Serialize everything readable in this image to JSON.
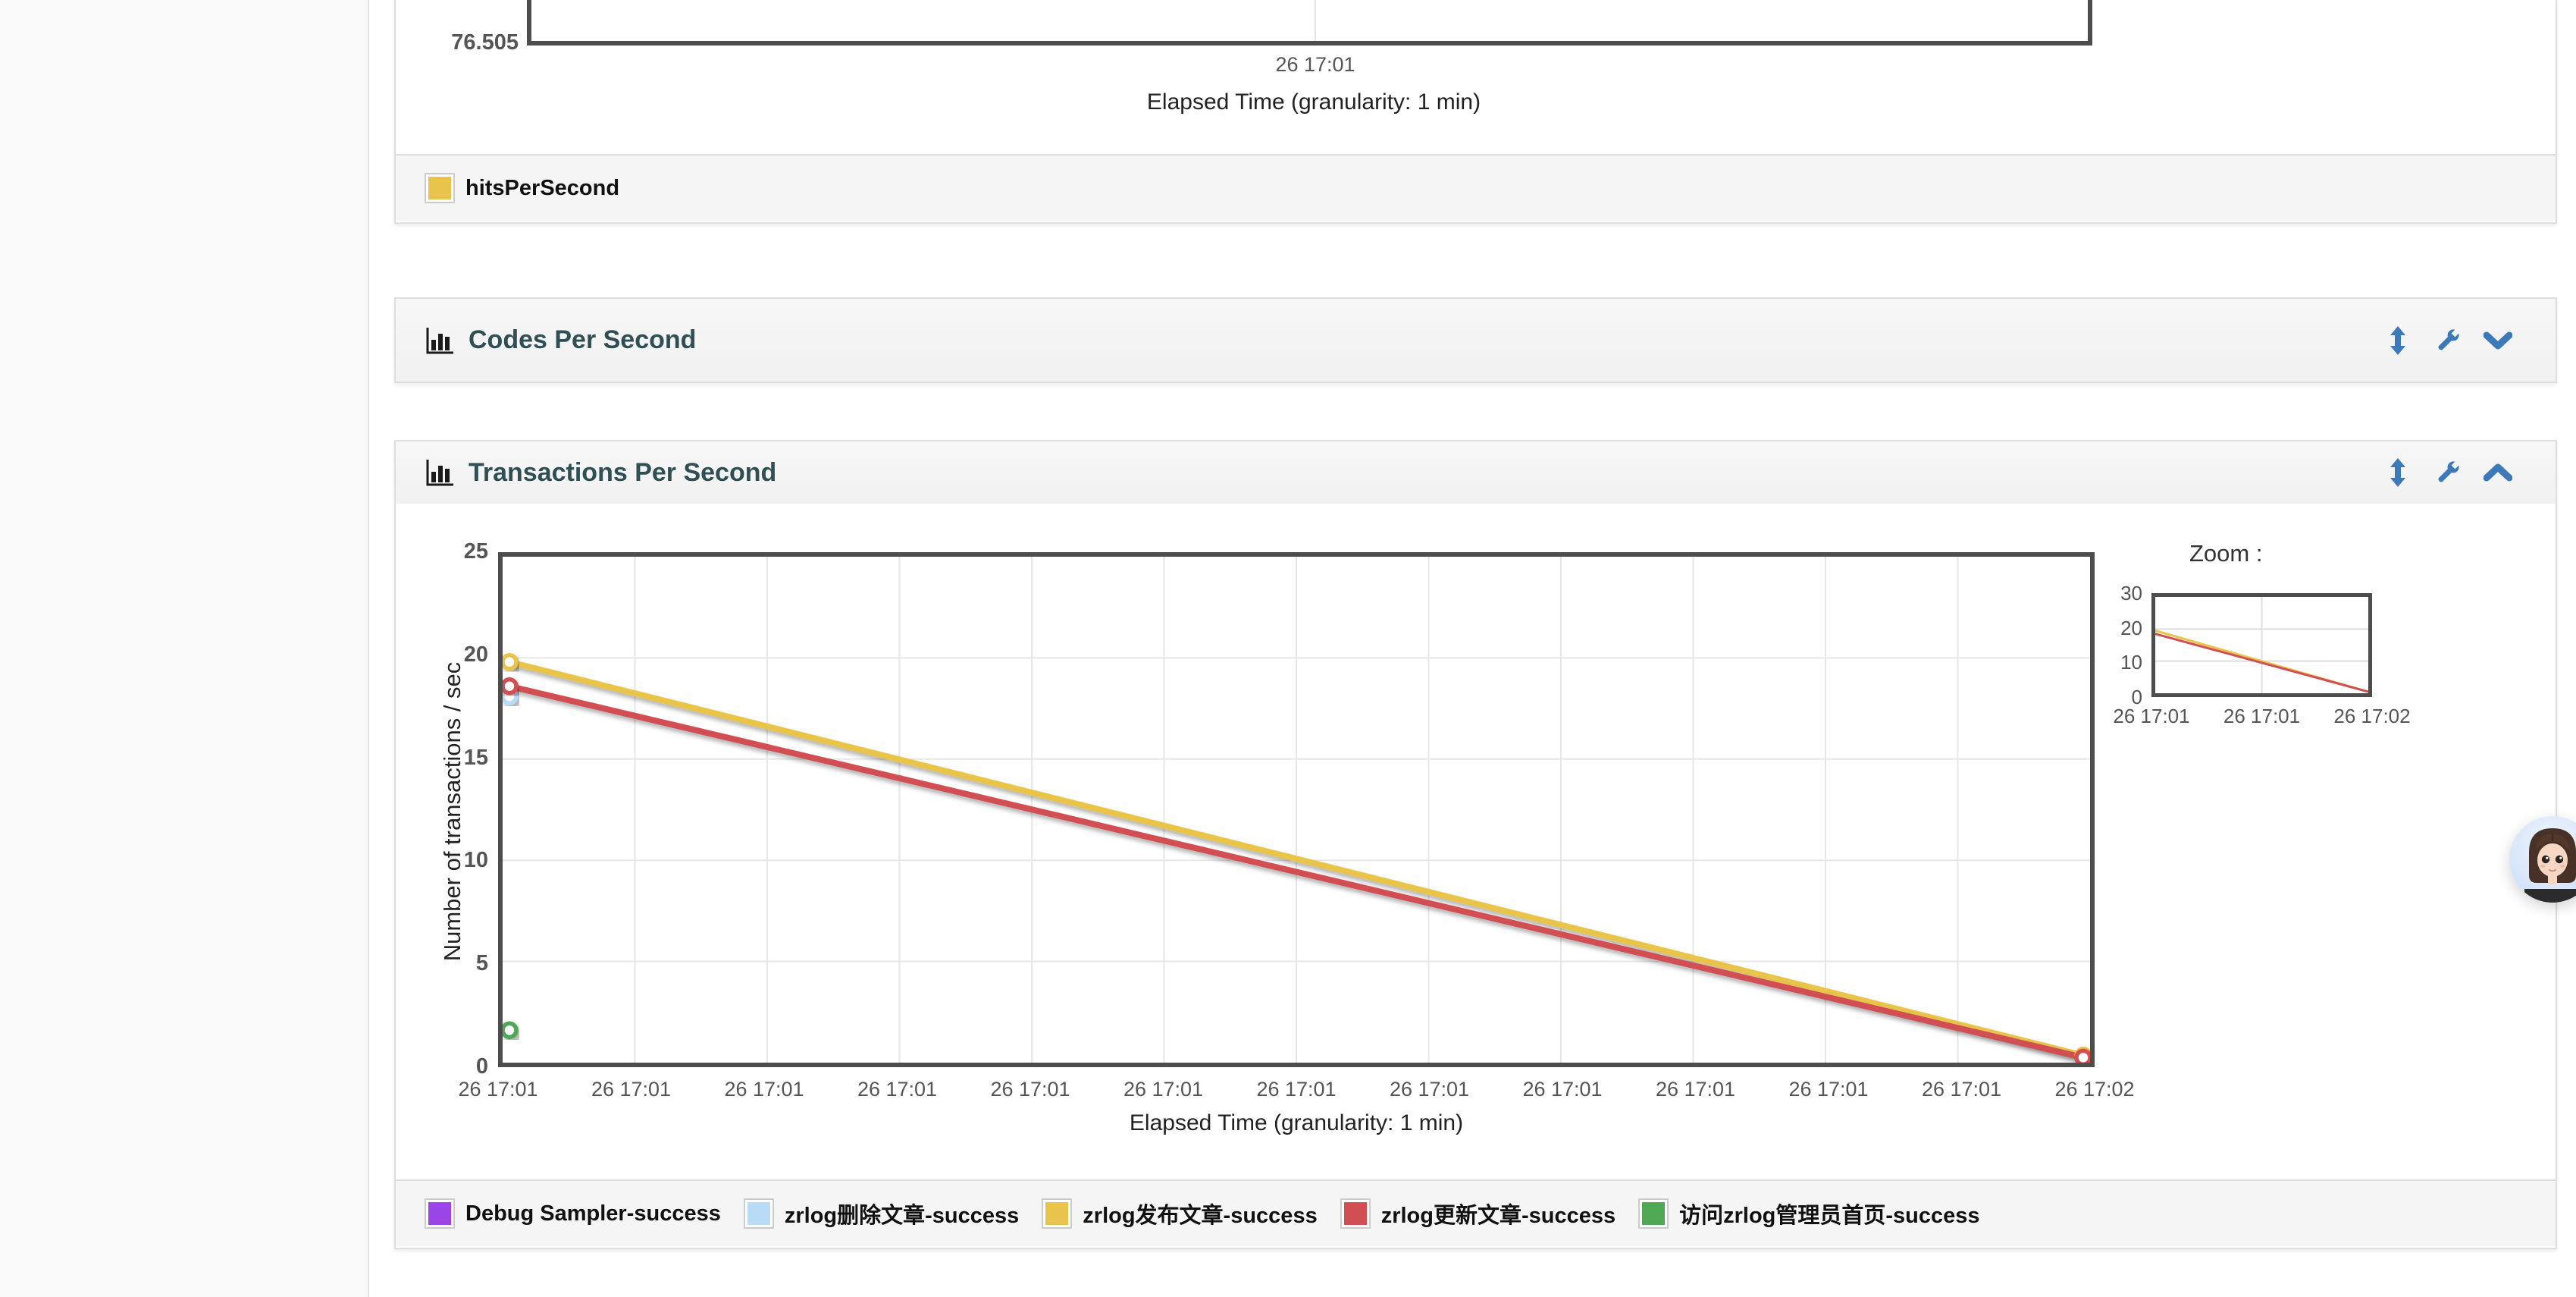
{
  "accent_blue": "#3b79b8",
  "title_color": "#2f4f54",
  "hits_panel": {
    "y_bottom_tick": "76.505",
    "x_tick": "26 17:01",
    "xlabel": "Elapsed Time (granularity: 1 min)",
    "legend": [
      {
        "label": "hitsPerSecond",
        "color": "#e8c44c"
      }
    ]
  },
  "codes_panel": {
    "title": "Codes Per Second",
    "icons": [
      "resize-vertical",
      "wrench",
      "chevron-down"
    ]
  },
  "transactions_panel": {
    "title": "Transactions Per Second",
    "zoom_label": "Zoom :",
    "icons": [
      "resize-vertical",
      "wrench",
      "chevron-up"
    ],
    "legend": [
      {
        "label": "Debug Sampler-success",
        "color": "#9b45e8"
      },
      {
        "label": "zrlog删除文章-success",
        "color": "#b9dcf6"
      },
      {
        "label": "zrlog发布文章-success",
        "color": "#e8c44c"
      },
      {
        "label": "zrlog更新文章-success",
        "color": "#d14f52"
      },
      {
        "label": "访问zrlog管理员首页-success",
        "color": "#4fa854"
      }
    ]
  },
  "chart_data": [
    {
      "id": "hits-per-second",
      "type": "line",
      "note": "only bottom edge of plot visible at top of viewport",
      "xlabel": "Elapsed Time (granularity: 1 min)",
      "visible_y_tick": 76.505,
      "x_ticks": [
        "26 17:01"
      ],
      "series": [
        {
          "name": "hitsPerSecond",
          "color": "#e8c44c"
        }
      ],
      "legend_position": "bottom"
    },
    {
      "id": "transactions-per-second",
      "type": "line",
      "ylabel": "Number of transactions / sec",
      "xlabel": "Elapsed Time (granularity: 1 min)",
      "ylim": [
        0,
        25
      ],
      "y_ticks": [
        0,
        5,
        10,
        15,
        20,
        25
      ],
      "x_ticks": [
        "26 17:01",
        "26 17:01",
        "26 17:01",
        "26 17:01",
        "26 17:01",
        "26 17:01",
        "26 17:01",
        "26 17:01",
        "26 17:01",
        "26 17:01",
        "26 17:01",
        "26 17:01",
        "26 17:02"
      ],
      "grid": true,
      "legend_position": "bottom",
      "series": [
        {
          "name": "Debug Sampler-success",
          "color": "#9b45e8",
          "points": []
        },
        {
          "name": "zrlog删除文章-success",
          "color": "#b9dcf6",
          "points": [
            {
              "x": 0,
              "y": 18.1
            }
          ]
        },
        {
          "name": "zrlog发布文章-success",
          "color": "#e8c44c",
          "points": [
            {
              "x": 0,
              "y": 19.8
            },
            {
              "x": 12,
              "y": 0.35
            }
          ]
        },
        {
          "name": "zrlog更新文章-success",
          "color": "#d14f52",
          "points": [
            {
              "x": 0,
              "y": 18.6
            },
            {
              "x": 12,
              "y": 0.25
            }
          ]
        },
        {
          "name": "访问zrlog管理员首页-success",
          "color": "#4fa854",
          "points": [
            {
              "x": 0,
              "y": 1.6
            }
          ]
        }
      ]
    },
    {
      "id": "zoom-overview",
      "type": "line",
      "ylim": [
        0,
        30
      ],
      "y_ticks": [
        0,
        10,
        20,
        30
      ],
      "x_ticks": [
        "26 17:01",
        "26 17:01",
        "26 17:02"
      ],
      "grid": true,
      "series": [
        {
          "name": "zrlog发布文章-success",
          "color": "#e8c44c",
          "points": [
            {
              "x": 0,
              "y": 19.5
            },
            {
              "x": 2,
              "y": 0
            }
          ]
        },
        {
          "name": "zrlog更新文章-success",
          "color": "#d14f52",
          "points": [
            {
              "x": 0,
              "y": 18.5
            },
            {
              "x": 2,
              "y": 0
            }
          ]
        }
      ]
    }
  ]
}
